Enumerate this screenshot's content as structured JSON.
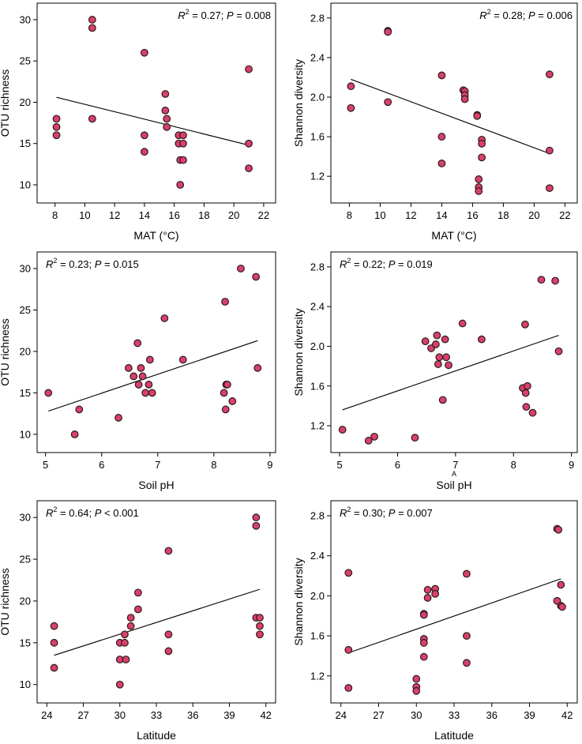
{
  "colors": {
    "point_fill": "#d9406a",
    "point_stroke": "#2a1a1e",
    "line": "#000000",
    "frame": "#000000"
  },
  "chart_data": [
    {
      "type": "scatter",
      "xlabel": "MAT (°C)",
      "ylabel": "OTU richness",
      "annotation": {
        "r2_sym": "R",
        "r2_sup": "2",
        "r2_val": " = 0.27; ",
        "p_sym": "P",
        "p_val": " = 0.008"
      },
      "xlim": [
        6.8,
        22.8
      ],
      "ylim": [
        7.8,
        32
      ],
      "xticks": [
        8,
        10,
        12,
        14,
        16,
        18,
        20,
        22
      ],
      "yticks": [
        10,
        15,
        20,
        25,
        30
      ],
      "points": [
        [
          8.1,
          16
        ],
        [
          8.1,
          17
        ],
        [
          8.1,
          18
        ],
        [
          10.5,
          30
        ],
        [
          10.5,
          29
        ],
        [
          10.5,
          18
        ],
        [
          14,
          26
        ],
        [
          14,
          16
        ],
        [
          14,
          14
        ],
        [
          15.4,
          21
        ],
        [
          15.4,
          19
        ],
        [
          15.5,
          18
        ],
        [
          15.5,
          17
        ],
        [
          16.3,
          16
        ],
        [
          16.3,
          15
        ],
        [
          16.4,
          13
        ],
        [
          16.4,
          10
        ],
        [
          16.6,
          16
        ],
        [
          16.6,
          15
        ],
        [
          16.6,
          13
        ],
        [
          21,
          24
        ],
        [
          21,
          15
        ],
        [
          21,
          12
        ]
      ],
      "fit": [
        [
          8.1,
          20.6
        ],
        [
          21,
          14.8
        ]
      ]
    },
    {
      "type": "scatter",
      "xlabel": "MAT (°C)",
      "ylabel": "Shannon diversity",
      "annotation": {
        "r2_sym": "R",
        "r2_sup": "2",
        "r2_val": " = 0.28; ",
        "p_sym": "P",
        "p_val": " = 0.006"
      },
      "xlim": [
        6.8,
        22.8
      ],
      "ylim": [
        0.93,
        2.95
      ],
      "xticks": [
        8,
        10,
        12,
        14,
        16,
        18,
        20,
        22
      ],
      "yticks": [
        1.2,
        1.6,
        2.0,
        2.4,
        2.8
      ],
      "points": [
        [
          8.1,
          2.11
        ],
        [
          8.1,
          1.89
        ],
        [
          10.5,
          2.67
        ],
        [
          10.5,
          2.66
        ],
        [
          10.5,
          1.95
        ],
        [
          14,
          2.22
        ],
        [
          14,
          1.6
        ],
        [
          14,
          1.33
        ],
        [
          15.4,
          2.07
        ],
        [
          15.5,
          2.06
        ],
        [
          15.5,
          2.02
        ],
        [
          15.5,
          1.98
        ],
        [
          16.3,
          1.82
        ],
        [
          16.3,
          1.81
        ],
        [
          16.4,
          1.17
        ],
        [
          16.4,
          1.09
        ],
        [
          16.4,
          1.05
        ],
        [
          16.6,
          1.57
        ],
        [
          16.6,
          1.53
        ],
        [
          16.6,
          1.39
        ],
        [
          21,
          2.23
        ],
        [
          21,
          1.46
        ],
        [
          21,
          1.08
        ]
      ],
      "fit": [
        [
          8.1,
          2.18
        ],
        [
          21,
          1.43
        ]
      ]
    },
    {
      "type": "scatter",
      "xlabel": "Soil pH",
      "ylabel": "OTU richness",
      "annotation": {
        "r2_sym": "R",
        "r2_sup": "2",
        "r2_val": " = 0.23; ",
        "p_sym": "P",
        "p_val": " = 0.015"
      },
      "xlim": [
        4.85,
        9.1
      ],
      "ylim": [
        7.8,
        32
      ],
      "xticks": [
        5,
        6,
        7,
        8,
        9
      ],
      "yticks": [
        10,
        15,
        20,
        25,
        30
      ],
      "points": [
        [
          5.05,
          15
        ],
        [
          5.52,
          10
        ],
        [
          5.6,
          13
        ],
        [
          6.3,
          12
        ],
        [
          6.48,
          18
        ],
        [
          6.57,
          17
        ],
        [
          6.64,
          21
        ],
        [
          6.66,
          16
        ],
        [
          6.7,
          18
        ],
        [
          6.73,
          17
        ],
        [
          6.78,
          15
        ],
        [
          6.84,
          16
        ],
        [
          6.86,
          19
        ],
        [
          6.9,
          15
        ],
        [
          7.12,
          24
        ],
        [
          7.45,
          19
        ],
        [
          8.18,
          15
        ],
        [
          8.2,
          26
        ],
        [
          8.21,
          13
        ],
        [
          8.22,
          16
        ],
        [
          8.24,
          16
        ],
        [
          8.33,
          14
        ],
        [
          8.48,
          30
        ],
        [
          8.75,
          29
        ],
        [
          8.78,
          18
        ]
      ],
      "fit": [
        [
          5.05,
          12.8
        ],
        [
          8.78,
          21.3
        ]
      ]
    },
    {
      "type": "scatter",
      "xlabel": "Soil pH",
      "ylabel": "Shannon diversity",
      "annotation": {
        "r2_sym": "R",
        "r2_sup": "2",
        "r2_val": " = 0.22; ",
        "p_sym": "P",
        "p_val": " = 0.019"
      },
      "extra_label": "A",
      "xlim": [
        4.85,
        9.1
      ],
      "ylim": [
        0.93,
        2.95
      ],
      "xticks": [
        5,
        6,
        7,
        8,
        9
      ],
      "yticks": [
        1.2,
        1.6,
        2.0,
        2.4,
        2.8
      ],
      "points": [
        [
          5.05,
          1.16
        ],
        [
          5.5,
          1.05
        ],
        [
          5.6,
          1.09
        ],
        [
          6.3,
          1.08
        ],
        [
          6.48,
          2.05
        ],
        [
          6.58,
          1.98
        ],
        [
          6.66,
          2.02
        ],
        [
          6.68,
          2.11
        ],
        [
          6.7,
          1.82
        ],
        [
          6.72,
          1.89
        ],
        [
          6.78,
          1.46
        ],
        [
          6.82,
          2.07
        ],
        [
          6.84,
          1.89
        ],
        [
          6.88,
          1.81
        ],
        [
          7.12,
          2.23
        ],
        [
          7.45,
          2.07
        ],
        [
          8.16,
          1.58
        ],
        [
          8.2,
          2.22
        ],
        [
          8.21,
          1.53
        ],
        [
          8.22,
          1.39
        ],
        [
          8.24,
          1.6
        ],
        [
          8.33,
          1.33
        ],
        [
          8.48,
          2.67
        ],
        [
          8.72,
          2.66
        ],
        [
          8.78,
          1.95
        ]
      ],
      "fit": [
        [
          5.05,
          1.36
        ],
        [
          8.78,
          2.11
        ]
      ]
    },
    {
      "type": "scatter",
      "xlabel": "Latitude",
      "ylabel": "OTU richness",
      "annotation": {
        "r2_sym": "R",
        "r2_sup": "2",
        "r2_val": " = 0.64; ",
        "p_sym": "P",
        "p_val": " < 0.001"
      },
      "xlim": [
        23.2,
        42.8
      ],
      "ylim": [
        7.8,
        32
      ],
      "xticks": [
        24,
        27,
        30,
        33,
        36,
        39,
        42
      ],
      "yticks": [
        10,
        15,
        20,
        25,
        30
      ],
      "points": [
        [
          24.6,
          17
        ],
        [
          24.6,
          15
        ],
        [
          24.6,
          12
        ],
        [
          30,
          15
        ],
        [
          30,
          13
        ],
        [
          30,
          10
        ],
        [
          30.4,
          16
        ],
        [
          30.4,
          15
        ],
        [
          30.5,
          13
        ],
        [
          30.9,
          18
        ],
        [
          30.9,
          17
        ],
        [
          31.5,
          21
        ],
        [
          31.5,
          19
        ],
        [
          34,
          26
        ],
        [
          34,
          16
        ],
        [
          34,
          14
        ],
        [
          41.2,
          30
        ],
        [
          41.2,
          29
        ],
        [
          41.2,
          18
        ],
        [
          41.5,
          18
        ],
        [
          41.5,
          17
        ],
        [
          41.5,
          16
        ]
      ],
      "fit": [
        [
          24.6,
          13.5
        ],
        [
          41.5,
          21.4
        ]
      ]
    },
    {
      "type": "scatter",
      "xlabel": "Latitude",
      "ylabel": "Shannon diversity",
      "annotation": {
        "r2_sym": "R",
        "r2_sup": "2",
        "r2_val": " = 0.30; ",
        "p_sym": "P",
        "p_val": " = 0.007"
      },
      "xlim": [
        23.2,
        42.8
      ],
      "ylim": [
        0.93,
        2.95
      ],
      "xticks": [
        24,
        27,
        30,
        33,
        36,
        39,
        42
      ],
      "yticks": [
        1.2,
        1.6,
        2.0,
        2.4,
        2.8
      ],
      "points": [
        [
          24.6,
          2.23
        ],
        [
          24.6,
          1.46
        ],
        [
          24.6,
          1.08
        ],
        [
          30,
          1.17
        ],
        [
          30,
          1.09
        ],
        [
          30,
          1.05
        ],
        [
          30.6,
          1.82
        ],
        [
          30.6,
          1.81
        ],
        [
          30.6,
          1.57
        ],
        [
          30.6,
          1.53
        ],
        [
          30.6,
          1.39
        ],
        [
          30.9,
          2.06
        ],
        [
          30.9,
          1.98
        ],
        [
          31.5,
          2.07
        ],
        [
          31.5,
          2.02
        ],
        [
          34,
          2.22
        ],
        [
          34,
          1.6
        ],
        [
          34,
          1.33
        ],
        [
          41.2,
          2.67
        ],
        [
          41.3,
          2.66
        ],
        [
          41.2,
          1.95
        ],
        [
          41.5,
          2.11
        ],
        [
          41.5,
          1.9
        ],
        [
          41.6,
          1.89
        ]
      ],
      "fit": [
        [
          24.6,
          1.43
        ],
        [
          41.5,
          2.17
        ]
      ]
    }
  ]
}
